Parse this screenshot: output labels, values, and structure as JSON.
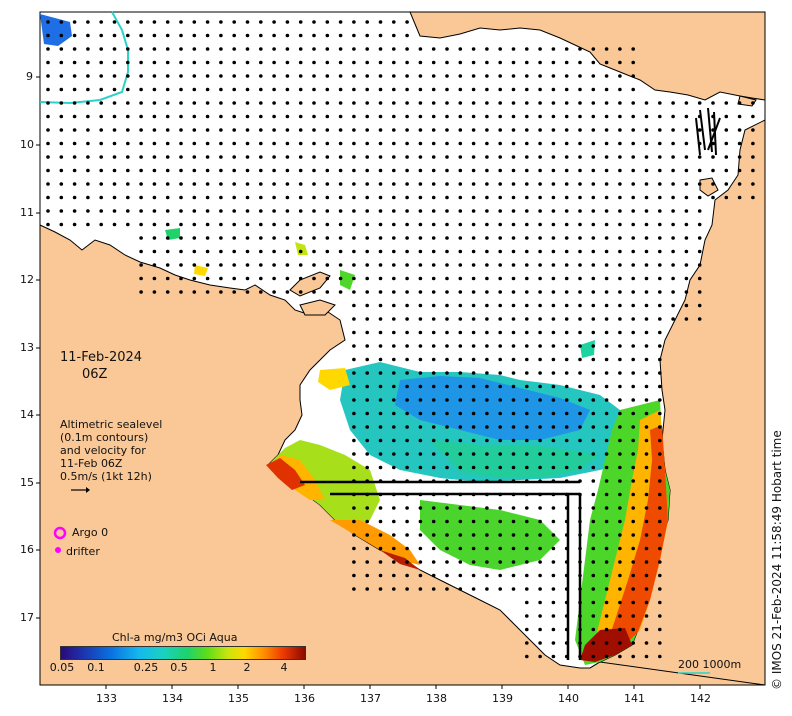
{
  "map": {
    "date_label": "11-Feb-2024",
    "time_label": "06Z",
    "legend": {
      "line1": "Altimetric sealevel",
      "line2": "(0.1m contours)",
      "line3": "and velocity for",
      "line4": "11-Feb 06Z",
      "line5": "0.5m/s (1kt 12h)"
    },
    "markers": {
      "argo_label": "Argo 0",
      "drifter_label": "drifter",
      "argo_color": "#ff00ff",
      "drifter_color": "#ff00ff"
    },
    "colorbar": {
      "title": "Chl-a mg/m3 OCi Aqua",
      "ticks": [
        "0.05",
        "0.1",
        "0.25",
        "0.5",
        "1",
        "2",
        "4"
      ]
    },
    "lat_labels": [
      "9",
      "10",
      "11",
      "12",
      "13",
      "14",
      "15",
      "16",
      "17"
    ],
    "lon_labels": [
      "133",
      "134",
      "135",
      "136",
      "137",
      "138",
      "139",
      "140",
      "141",
      "142"
    ],
    "scale_label": "200  1000m",
    "credit": "© IMOS 21-Feb-2024 11:58:49 Hobart time",
    "colors": {
      "land": "#f9c896",
      "sea": "#ffffff",
      "contour_200m": "#2bd2c8",
      "arrows": "#000000"
    }
  }
}
